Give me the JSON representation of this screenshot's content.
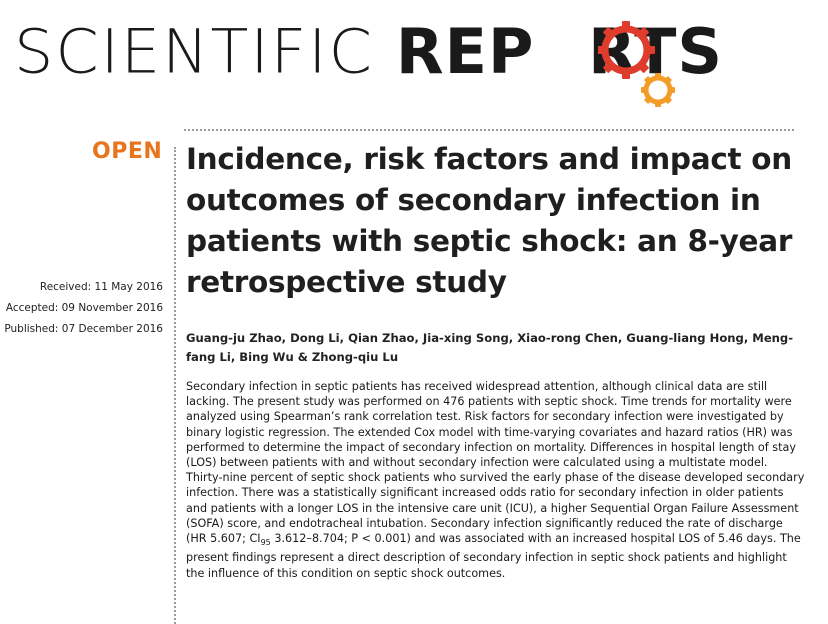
{
  "journal": {
    "name_light": "SCIENTIFIC",
    "name_bold_pre": "REP",
    "name_bold_o": "O",
    "name_bold_post": "RTS",
    "logo_colors": [
      "#e03c2c",
      "#f39c27"
    ]
  },
  "article": {
    "access_label": "OPEN",
    "title": "Incidence, risk factors and impact on outcomes of secondary infection in patients with septic shock: an 8-year retrospective study",
    "dates": {
      "received": "Received: 11 May 2016",
      "accepted": "Accepted: 09 November 2016",
      "published": "Published: 07 December 2016"
    },
    "authors": "Guang-ju Zhao, Dong Li, Qian Zhao, Jia-xing Song, Xiao-rong Chen, Guang-liang Hong, Meng-fang Li, Bing Wu & Zhong-qiu Lu",
    "abstract": {
      "part1": "Secondary infection in septic patients has received widespread attention, although clinical data are still lacking. The present study was performed on 476 patients with septic shock. Time trends for mortality were analyzed using Spearman’s rank correlation test. Risk factors for secondary infection were investigated by binary logistic regression. The extended Cox model with time-varying covariates and hazard ratios (HR) was performed to determine the impact of secondary infection on mortality. Differences in hospital length of stay (LOS) between patients with and without secondary infection were calculated using a multistate model. Thirty-nine percent of septic shock patients who survived the early phase of the disease developed secondary infection. There was a statistically significant increased odds ratio for secondary infection in older patients and patients with a longer LOS in the intensive care unit (ICU), a higher Sequential Organ Failure Assessment (SOFA) score, and endotracheal intubation. Secondary infection significantly reduced the rate of discharge (HR 5.607; CI",
      "ci_sub": "95",
      "part2": " 3.612–8.704; P < 0.001) and was associated with an increased hospital LOS of 5.46 days. The present findings represent a direct description of secondary infection in septic shock patients and highlight the influence of this condition on septic shock outcomes."
    }
  }
}
